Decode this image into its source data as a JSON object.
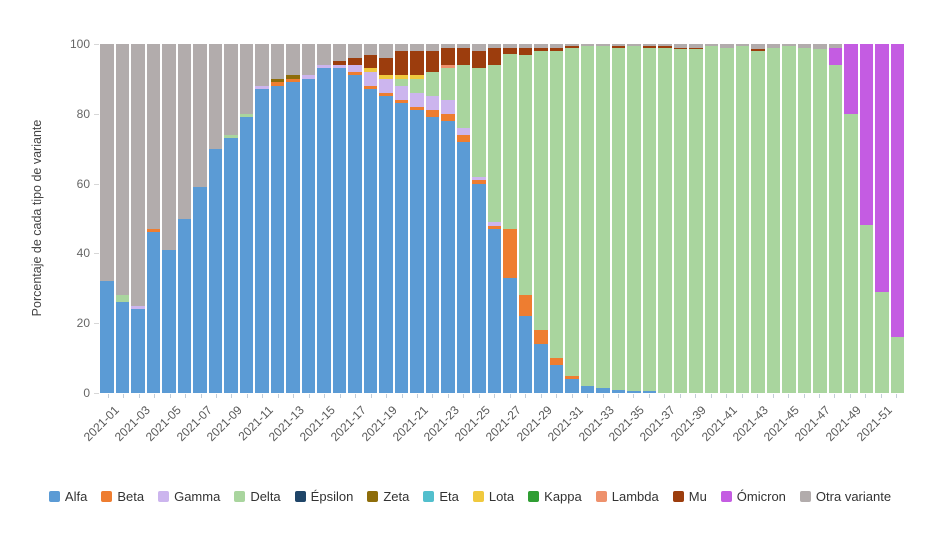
{
  "chart": {
    "y_ticks": [
      0,
      20,
      40,
      60,
      80,
      100
    ],
    "x_label_every": 2
  },
  "chart_data": {
    "type": "bar",
    "stacked": true,
    "title": "",
    "xlabel": "",
    "ylabel": "Porcentaje de cada tipo de variante",
    "ylim": [
      0,
      100
    ],
    "grid": false,
    "legend_position": "bottom",
    "categories": [
      "2021-01",
      "2021-02",
      "2021-03",
      "2021-04",
      "2021-05",
      "2021-06",
      "2021-07",
      "2021-08",
      "2021-09",
      "2021-10",
      "2021-11",
      "2021-12",
      "2021-13",
      "2021-14",
      "2021-15",
      "2021-16",
      "2021-17",
      "2021-18",
      "2021-19",
      "2021-20",
      "2021-21",
      "2021-22",
      "2021-23",
      "2021-24",
      "2021-25",
      "2021-26",
      "2021-27",
      "2021-28",
      "2021-29",
      "2021-30",
      "2021-31",
      "2021-32",
      "2021-33",
      "2021-34",
      "2021-35",
      "2021-36",
      "2021-37",
      "2021-38",
      "2021-39",
      "2021-40",
      "2021-41",
      "2021-42",
      "2021-43",
      "2021-44",
      "2021-45",
      "2021-46",
      "2021-47",
      "2021-48",
      "2021-49",
      "2021-50",
      "2021-51",
      "2021-52"
    ],
    "series": [
      {
        "name": "Alfa",
        "color": "#5b9bd5",
        "values": [
          32,
          26,
          24,
          46,
          41,
          50,
          59,
          70,
          73,
          79,
          87,
          88,
          89,
          90,
          93,
          93,
          91,
          87,
          85,
          83,
          81,
          79,
          78,
          72,
          60,
          47,
          33,
          22,
          14,
          8,
          4,
          2,
          1.5,
          1,
          0.5,
          0.5,
          0,
          0,
          0,
          0,
          0,
          0,
          0,
          0,
          0,
          0,
          0,
          0,
          0,
          0,
          0,
          0
        ]
      },
      {
        "name": "Beta",
        "color": "#ee7d30",
        "values": [
          0,
          0,
          0,
          1,
          0,
          0,
          0,
          0,
          0,
          0,
          0,
          1,
          1,
          0,
          0,
          0,
          1,
          1,
          1,
          1,
          1,
          2,
          2,
          2,
          1,
          1,
          14,
          6,
          4,
          2,
          1,
          0,
          0,
          0,
          0,
          0,
          0,
          0,
          0,
          0,
          0,
          0,
          0,
          0,
          0,
          0,
          0,
          0,
          0,
          0,
          0,
          0
        ]
      },
      {
        "name": "Gamma",
        "color": "#ccb5ee",
        "values": [
          0,
          0,
          1,
          0,
          0,
          0,
          0,
          0,
          0,
          0,
          1,
          0,
          0,
          1,
          1,
          1,
          2,
          4,
          4,
          4,
          4,
          4,
          4,
          2,
          1,
          1,
          0,
          0,
          0,
          0,
          0,
          0,
          0,
          0,
          0,
          0,
          0,
          0,
          0,
          0,
          0,
          0,
          0,
          0,
          0,
          0,
          0,
          0,
          0,
          0,
          0,
          0
        ]
      },
      {
        "name": "Delta",
        "color": "#a9d59e",
        "values": [
          0,
          2,
          0,
          0,
          0,
          0,
          0,
          0,
          1,
          1,
          0,
          0,
          0,
          0,
          0,
          0,
          0,
          0,
          0,
          2,
          4,
          7,
          9,
          18,
          31,
          45,
          50,
          69,
          80,
          88,
          94,
          97.5,
          98,
          98,
          99,
          98.5,
          99,
          98.5,
          98.5,
          99.5,
          99,
          99.5,
          98,
          99,
          99.5,
          99,
          98.5,
          94,
          80,
          48,
          29,
          16
        ]
      },
      {
        "name": "Épsilon",
        "color": "#1f4568",
        "values": [
          0,
          0,
          0,
          0,
          0,
          0,
          0,
          0,
          0,
          0,
          0,
          0,
          0,
          0,
          0,
          0,
          0,
          0,
          0,
          0,
          0,
          0,
          0,
          0,
          0,
          0,
          0,
          0,
          0,
          0,
          0,
          0,
          0,
          0,
          0,
          0,
          0,
          0,
          0,
          0,
          0,
          0,
          0,
          0,
          0,
          0,
          0,
          0,
          0,
          0,
          0,
          0
        ]
      },
      {
        "name": "Zeta",
        "color": "#8e6d0a",
        "values": [
          0,
          0,
          0,
          0,
          0,
          0,
          0,
          0,
          0,
          0,
          0,
          1,
          1,
          0,
          0,
          0,
          0,
          0,
          0,
          0,
          0,
          0,
          0,
          0,
          0,
          0,
          0,
          0,
          0,
          0,
          0,
          0,
          0,
          0,
          0,
          0,
          0,
          0,
          0,
          0,
          0,
          0,
          0,
          0,
          0,
          0,
          0,
          0,
          0,
          0,
          0,
          0
        ]
      },
      {
        "name": "Eta",
        "color": "#52bfcd",
        "values": [
          0,
          0,
          0,
          0,
          0,
          0,
          0,
          0,
          0,
          0,
          0,
          0,
          0,
          0,
          0,
          0,
          0,
          0,
          0,
          0,
          0,
          0,
          0,
          0,
          0,
          0,
          0,
          0,
          0,
          0,
          0,
          0,
          0,
          0,
          0,
          0,
          0,
          0,
          0,
          0,
          0,
          0,
          0,
          0,
          0,
          0,
          0,
          0,
          0,
          0,
          0,
          0
        ]
      },
      {
        "name": "Lota",
        "color": "#f0c93e",
        "values": [
          0,
          0,
          0,
          0,
          0,
          0,
          0,
          0,
          0,
          0,
          0,
          0,
          0,
          0,
          0,
          0,
          0,
          1,
          1,
          1,
          1,
          0,
          0,
          0,
          0,
          0,
          0,
          0,
          0,
          0,
          0,
          0,
          0,
          0,
          0,
          0,
          0,
          0,
          0,
          0,
          0,
          0,
          0,
          0,
          0,
          0,
          0,
          0,
          0,
          0,
          0,
          0
        ]
      },
      {
        "name": "Kappa",
        "color": "#2f9e33",
        "values": [
          0,
          0,
          0,
          0,
          0,
          0,
          0,
          0,
          0,
          0,
          0,
          0,
          0,
          0,
          0,
          0,
          0,
          0,
          0,
          0,
          0,
          0,
          0,
          0,
          0,
          0,
          0,
          0,
          0,
          0,
          0,
          0,
          0,
          0,
          0,
          0,
          0,
          0,
          0,
          0,
          0,
          0,
          0,
          0,
          0,
          0,
          0,
          0,
          0,
          0,
          0,
          0
        ]
      },
      {
        "name": "Lambda",
        "color": "#ee916c",
        "values": [
          0,
          0,
          0,
          0,
          0,
          0,
          0,
          0,
          0,
          0,
          0,
          0,
          0,
          0,
          0,
          0,
          0,
          0,
          0,
          0,
          0,
          0,
          1,
          0,
          0,
          0,
          0,
          0,
          0,
          0,
          0,
          0,
          0,
          0,
          0,
          0,
          0,
          0,
          0,
          0,
          0,
          0,
          0,
          0,
          0,
          0,
          0,
          0,
          0,
          0,
          0,
          0
        ]
      },
      {
        "name": "Mu",
        "color": "#9c3d0d",
        "values": [
          0,
          0,
          0,
          0,
          0,
          0,
          0,
          0,
          0,
          0,
          0,
          0,
          0,
          0,
          0,
          1,
          2,
          4,
          5,
          7,
          7,
          6,
          5,
          5,
          5,
          5,
          2,
          2,
          1,
          1,
          0.5,
          0,
          0,
          0.5,
          0,
          0.5,
          0.5,
          0.5,
          0.5,
          0,
          0,
          0,
          0.5,
          0,
          0,
          0,
          0,
          0,
          0,
          0,
          0,
          0
        ]
      },
      {
        "name": "Ómicron",
        "color": "#c45ce2",
        "values": [
          0,
          0,
          0,
          0,
          0,
          0,
          0,
          0,
          0,
          0,
          0,
          0,
          0,
          0,
          0,
          0,
          0,
          0,
          0,
          0,
          0,
          0,
          0,
          0,
          0,
          0,
          0,
          0,
          0,
          0,
          0,
          0,
          0,
          0,
          0,
          0,
          0,
          0,
          0,
          0,
          0,
          0,
          0,
          0,
          0,
          0,
          0,
          5,
          20,
          52,
          71,
          84
        ]
      },
      {
        "name": "Otra variante",
        "color": "#b2acac",
        "values": [
          68,
          72,
          75,
          53,
          59,
          50,
          41,
          30,
          26,
          20,
          12,
          10,
          9,
          9,
          6,
          5,
          4,
          3,
          4,
          2,
          2,
          2,
          1,
          1,
          2,
          1,
          1,
          1,
          1,
          1,
          0.5,
          0.5,
          0.5,
          0.5,
          0.5,
          0.5,
          0.5,
          1,
          1,
          0.5,
          1,
          0.5,
          1.5,
          1,
          0.5,
          1,
          1.5,
          1,
          0,
          0,
          0,
          0
        ]
      }
    ]
  }
}
